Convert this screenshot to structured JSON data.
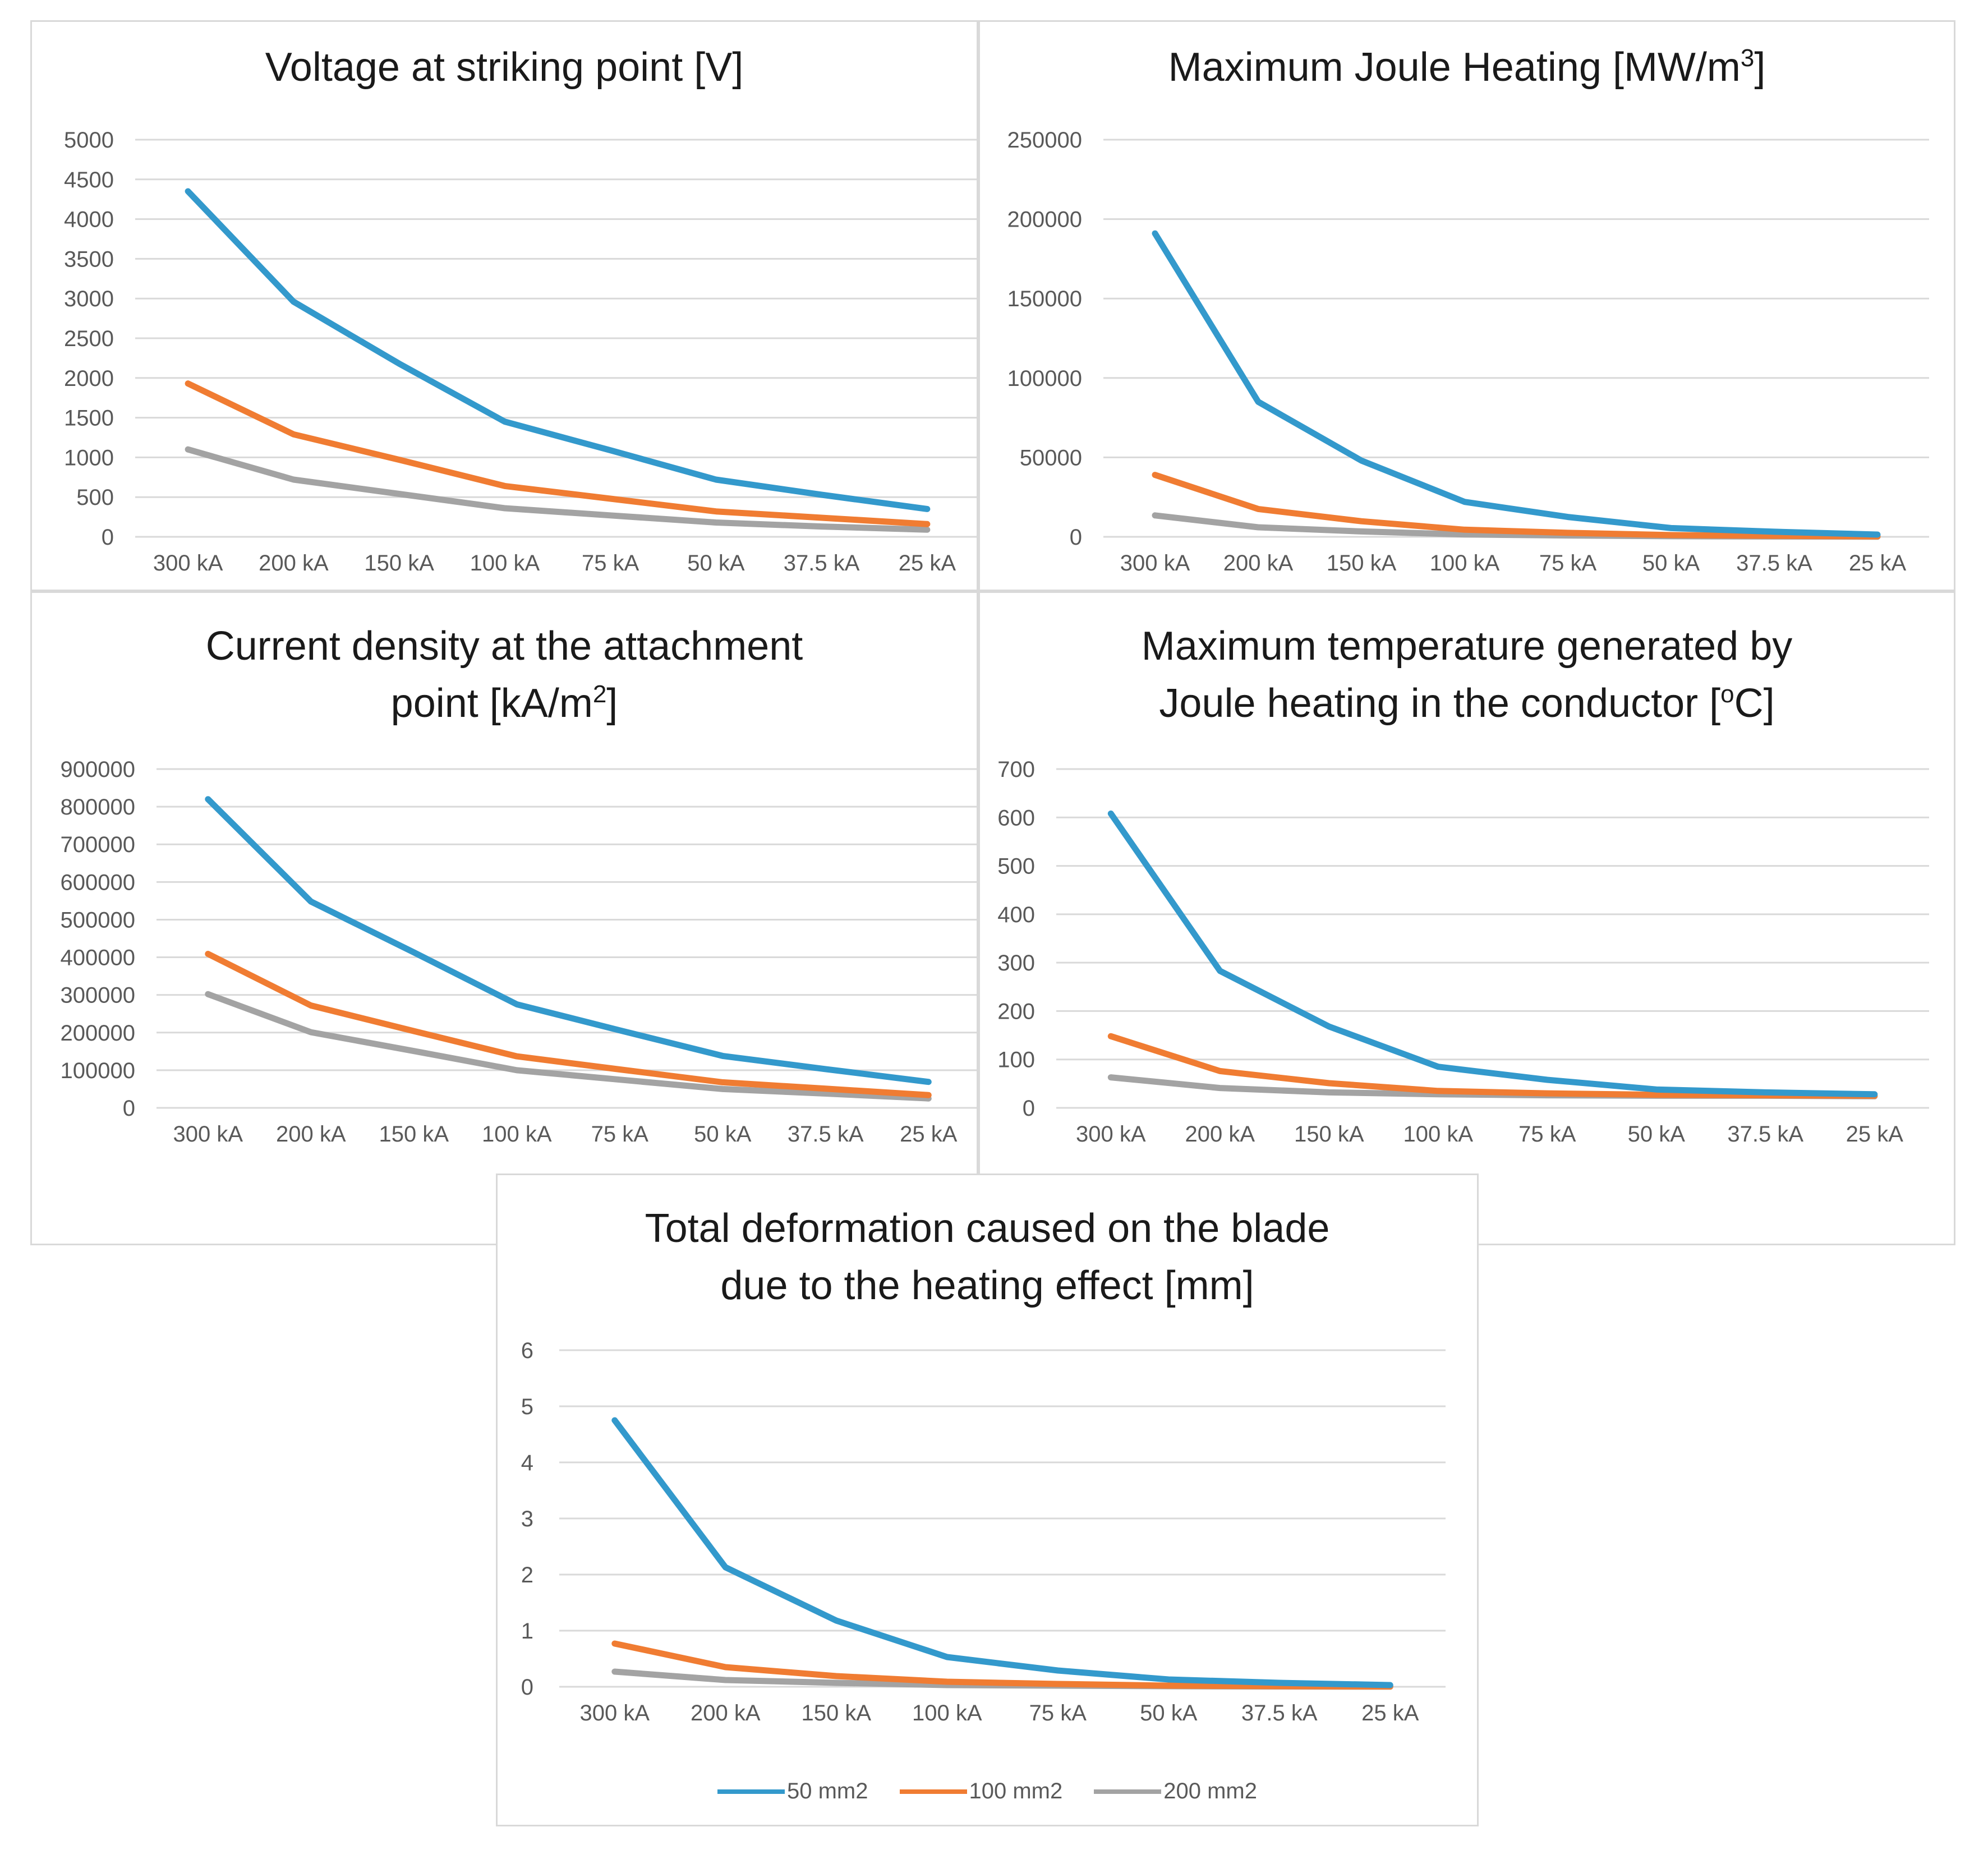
{
  "colors": {
    "50 mm2": "#3399cc",
    "100 mm2": "#f07c32",
    "200 mm2": "#a3a3a3",
    "grid": "#d9d9d9",
    "tick": "#595959"
  },
  "legend": [
    {
      "label": "50 mm2",
      "color": "#3399cc"
    },
    {
      "label": "100 mm2",
      "color": "#f07c32"
    },
    {
      "label": "200 mm2",
      "color": "#a3a3a3"
    }
  ],
  "chart_data": [
    {
      "type": "line",
      "title": "Voltage at striking point [V]",
      "categories": [
        "300 kA",
        "200 kA",
        "150 kA",
        "100 kA",
        "75 kA",
        "50 kA",
        "37.5 kA",
        "25 kA"
      ],
      "ylim": [
        0,
        5000
      ],
      "yticks": [
        0,
        500,
        1000,
        1500,
        2000,
        2500,
        3000,
        3500,
        4000,
        4500,
        5000
      ],
      "xlabel": "",
      "ylabel": "",
      "series": [
        {
          "name": "50 mm2",
          "values": [
            4350,
            2960,
            2180,
            1450,
            1090,
            720,
            530,
            350
          ]
        },
        {
          "name": "100 mm2",
          "values": [
            1930,
            1290,
            970,
            640,
            480,
            320,
            240,
            160
          ]
        },
        {
          "name": "200 mm2",
          "values": [
            1100,
            720,
            540,
            360,
            270,
            180,
            130,
            90
          ]
        }
      ]
    },
    {
      "type": "line",
      "title": "Maximum Joule Heating [MW/m³]",
      "categories": [
        "300 kA",
        "200 kA",
        "150 kA",
        "100 kA",
        "75 kA",
        "50 kA",
        "37.5 kA",
        "25 kA"
      ],
      "ylim": [
        0,
        250000
      ],
      "yticks": [
        0,
        50000,
        100000,
        150000,
        200000,
        250000
      ],
      "xlabel": "",
      "ylabel": "",
      "series": [
        {
          "name": "50 mm2",
          "values": [
            191000,
            85000,
            48000,
            22000,
            12500,
            5500,
            3200,
            1400
          ]
        },
        {
          "name": "100 mm2",
          "values": [
            39000,
            17500,
            9800,
            4500,
            2500,
            1100,
            650,
            300
          ]
        },
        {
          "name": "200 mm2",
          "values": [
            13500,
            6000,
            3400,
            1500,
            850,
            380,
            220,
            100
          ]
        }
      ]
    },
    {
      "type": "line",
      "title": "Current density at the attachment point [kA/m²]",
      "categories": [
        "300 kA",
        "200 kA",
        "150 kA",
        "100 kA",
        "75 kA",
        "50 kA",
        "37.5 kA",
        "25 kA"
      ],
      "ylim": [
        0,
        900000
      ],
      "yticks": [
        0,
        100000,
        200000,
        300000,
        400000,
        500000,
        600000,
        700000,
        800000,
        900000
      ],
      "xlabel": "",
      "ylabel": "",
      "series": [
        {
          "name": "50 mm2",
          "values": [
            820000,
            548000,
            413000,
            275000,
            206000,
            138000,
            103000,
            69000
          ]
        },
        {
          "name": "100 mm2",
          "values": [
            409000,
            272000,
            204000,
            137000,
            102000,
            68000,
            51000,
            34000
          ]
        },
        {
          "name": "200 mm2",
          "values": [
            302000,
            201000,
            151000,
            100000,
            75000,
            50000,
            38000,
            25000
          ]
        }
      ]
    },
    {
      "type": "line",
      "title": "Maximum temperature generated by Joule heating in the conductor [°C]",
      "categories": [
        "300 kA",
        "200 kA",
        "150 kA",
        "100 kA",
        "75 kA",
        "50 kA",
        "37.5 kA",
        "25 kA"
      ],
      "ylim": [
        0,
        700
      ],
      "yticks": [
        0,
        100,
        200,
        300,
        400,
        500,
        600,
        700
      ],
      "xlabel": "",
      "ylabel": "",
      "series": [
        {
          "name": "50 mm2",
          "values": [
            608,
            283,
            168,
            85,
            58,
            38,
            32,
            28
          ]
        },
        {
          "name": "100 mm2",
          "values": [
            148,
            76,
            51,
            35,
            30,
            27,
            26,
            25
          ]
        },
        {
          "name": "200 mm2",
          "values": [
            63,
            41,
            32,
            28,
            26,
            25,
            25,
            24
          ]
        }
      ]
    },
    {
      "type": "line",
      "title": "Total deformation caused on the blade due to the heating effect [mm]",
      "categories": [
        "300 kA",
        "200 kA",
        "150 kA",
        "100 kA",
        "75 kA",
        "50 kA",
        "37.5 kA",
        "25 kA"
      ],
      "ylim": [
        0,
        6
      ],
      "yticks": [
        0,
        1,
        2,
        3,
        4,
        5,
        6
      ],
      "xlabel": "",
      "ylabel": "",
      "series": [
        {
          "name": "50 mm2",
          "values": [
            4.75,
            2.13,
            1.18,
            0.53,
            0.29,
            0.13,
            0.07,
            0.03
          ]
        },
        {
          "name": "100 mm2",
          "values": [
            0.77,
            0.35,
            0.19,
            0.09,
            0.05,
            0.02,
            0.01,
            0.005
          ]
        },
        {
          "name": "200 mm2",
          "values": [
            0.27,
            0.12,
            0.07,
            0.03,
            0.02,
            0.01,
            0.005,
            0.002
          ]
        }
      ]
    }
  ]
}
